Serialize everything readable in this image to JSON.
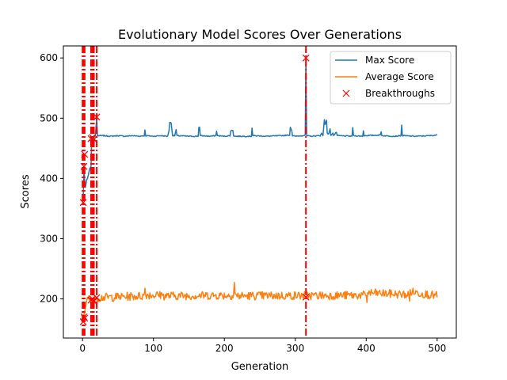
{
  "chart_data": {
    "type": "line",
    "title": "Evolutionary Model Scores Over Generations",
    "xlabel": "Generation",
    "ylabel": "Scores",
    "xlim": [
      -27,
      527
    ],
    "ylim": [
      135,
      620
    ],
    "xticks": [
      0,
      100,
      200,
      300,
      400,
      500
    ],
    "yticks": [
      200,
      300,
      400,
      500,
      600
    ],
    "x_tick_labels": [
      "0",
      "100",
      "200",
      "300",
      "400",
      "500"
    ],
    "y_tick_labels": [
      "200",
      "300",
      "400",
      "500",
      "600"
    ],
    "grid": false,
    "legend_position": "top-right",
    "legend": [
      "Max Score",
      "Average Score",
      "Breakthroughs"
    ],
    "series": [
      {
        "name": "Max Score",
        "color": "#1f77b4",
        "points": [
          [
            0,
            360
          ],
          [
            1,
            368
          ],
          [
            2,
            420
          ],
          [
            3,
            395
          ],
          [
            4,
            385
          ],
          [
            5,
            392
          ],
          [
            6,
            398
          ],
          [
            7,
            400
          ],
          [
            8,
            405
          ],
          [
            9,
            410
          ],
          [
            10,
            416
          ],
          [
            11,
            418
          ],
          [
            12,
            420
          ],
          [
            13,
            468
          ],
          [
            14,
            466
          ],
          [
            15,
            464
          ],
          [
            16,
            470
          ],
          [
            18,
            470
          ],
          [
            20,
            500
          ],
          [
            21,
            471
          ],
          [
            30,
            471
          ],
          [
            40,
            470
          ],
          [
            50,
            471
          ],
          [
            60,
            470
          ],
          [
            70,
            471
          ],
          [
            80,
            470
          ],
          [
            87,
            471
          ],
          [
            88,
            480
          ],
          [
            89,
            471
          ],
          [
            100,
            470
          ],
          [
            110,
            471
          ],
          [
            120,
            470
          ],
          [
            122,
            480
          ],
          [
            123,
            493
          ],
          [
            125,
            492
          ],
          [
            127,
            471
          ],
          [
            130,
            471
          ],
          [
            132,
            481
          ],
          [
            133,
            471
          ],
          [
            150,
            470
          ],
          [
            163,
            470
          ],
          [
            164,
            485
          ],
          [
            165,
            485
          ],
          [
            166,
            471
          ],
          [
            180,
            470
          ],
          [
            188,
            471
          ],
          [
            189,
            479
          ],
          [
            190,
            471
          ],
          [
            200,
            470
          ],
          [
            208,
            471
          ],
          [
            209,
            479
          ],
          [
            212,
            480
          ],
          [
            213,
            471
          ],
          [
            215,
            470
          ],
          [
            238,
            470
          ],
          [
            239,
            484
          ],
          [
            240,
            471
          ],
          [
            260,
            470
          ],
          [
            280,
            471
          ],
          [
            292,
            472
          ],
          [
            293,
            485
          ],
          [
            295,
            480
          ],
          [
            296,
            471
          ],
          [
            300,
            470
          ],
          [
            310,
            471
          ],
          [
            314,
            472
          ],
          [
            315,
            600
          ],
          [
            316,
            471
          ],
          [
            320,
            470
          ],
          [
            335,
            471
          ],
          [
            337,
            475
          ],
          [
            339,
            471
          ],
          [
            341,
            498
          ],
          [
            342,
            490
          ],
          [
            344,
            496
          ],
          [
            345,
            475
          ],
          [
            347,
            474
          ],
          [
            349,
            482
          ],
          [
            350,
            471
          ],
          [
            353,
            476
          ],
          [
            354,
            471
          ],
          [
            358,
            477
          ],
          [
            359,
            471
          ],
          [
            380,
            470
          ],
          [
            381,
            485
          ],
          [
            382,
            471
          ],
          [
            395,
            470
          ],
          [
            396,
            479
          ],
          [
            397,
            471
          ],
          [
            420,
            472
          ],
          [
            421,
            478
          ],
          [
            422,
            471
          ],
          [
            440,
            470
          ],
          [
            449,
            471
          ],
          [
            450,
            488
          ],
          [
            451,
            471
          ],
          [
            470,
            470
          ],
          [
            490,
            471
          ],
          [
            500,
            472
          ]
        ]
      },
      {
        "name": "Average Score",
        "color": "#ff7f0e",
        "mean": 208,
        "noise": 5,
        "points": [
          [
            0,
            162
          ],
          [
            1,
            175
          ],
          [
            2,
            168
          ],
          [
            3,
            178
          ],
          [
            4,
            185
          ],
          [
            5,
            192
          ],
          [
            6,
            198
          ],
          [
            7,
            203
          ],
          [
            8,
            200
          ],
          [
            9,
            205
          ],
          [
            10,
            198
          ],
          [
            12,
            202
          ],
          [
            14,
            197
          ],
          [
            15,
            202
          ],
          [
            16,
            196
          ],
          [
            18,
            204
          ],
          [
            20,
            202
          ],
          [
            87,
            205
          ],
          [
            88,
            220
          ],
          [
            89,
            207
          ],
          [
            110,
            206
          ],
          [
            111,
            215
          ],
          [
            112,
            205
          ],
          [
            213,
            206
          ],
          [
            214,
            227
          ],
          [
            215,
            210
          ],
          [
            216,
            205
          ],
          [
            400,
            206
          ],
          [
            401,
            198
          ],
          [
            402,
            210
          ],
          [
            460,
            207
          ],
          [
            461,
            195
          ],
          [
            462,
            212
          ],
          [
            500,
            205
          ]
        ]
      }
    ],
    "breakthroughs": {
      "color": "#ff0000",
      "marker": "x",
      "points": [
        [
          1,
          360
        ],
        [
          1,
          162
        ],
        [
          2,
          420
        ],
        [
          2,
          170
        ],
        [
          3,
          440
        ],
        [
          3,
          168
        ],
        [
          12,
          466
        ],
        [
          12,
          198
        ],
        [
          14,
          468
        ],
        [
          14,
          200
        ],
        [
          16,
          465
        ],
        [
          16,
          196
        ],
        [
          20,
          502
        ],
        [
          20,
          202
        ],
        [
          315,
          600
        ],
        [
          315,
          203
        ]
      ]
    },
    "vlines": {
      "color": "#ff0000",
      "style": "dashdot",
      "x": [
        0,
        1,
        2,
        3,
        12,
        14,
        16,
        20,
        315
      ]
    }
  }
}
